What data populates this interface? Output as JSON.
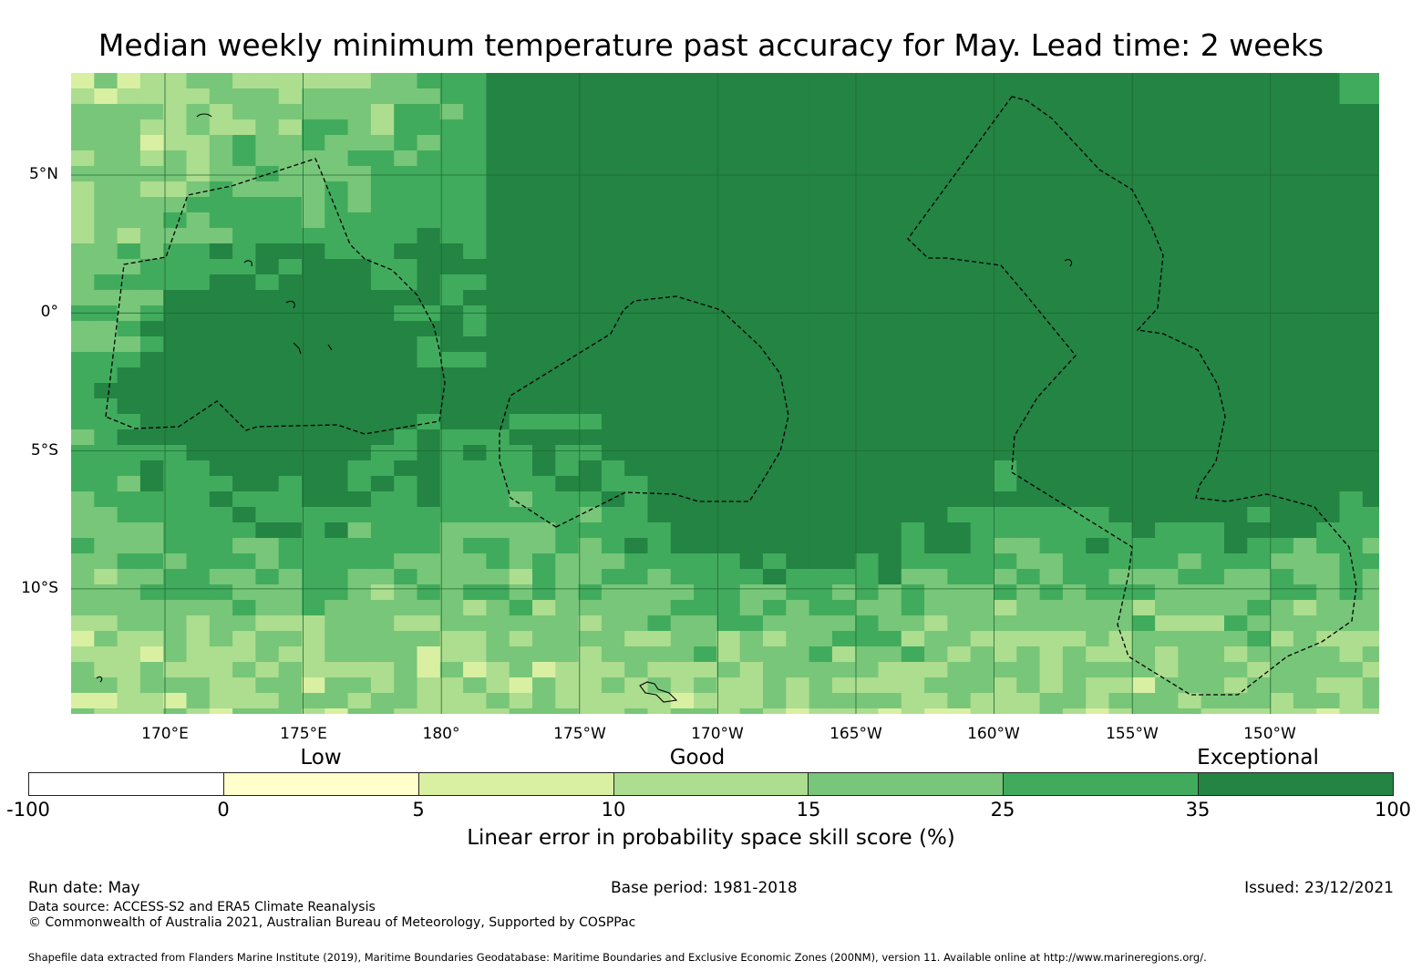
{
  "title": "Median weekly minimum temperature past accuracy for May. Lead time: 2 weeks",
  "map": {
    "lat_labels": [
      "5°N",
      "0°",
      "5°S",
      "10°S"
    ],
    "lon_labels": [
      "170°E",
      "175°E",
      "180°",
      "175°W",
      "170°W",
      "165°W",
      "160°W",
      "155°W",
      "150°W"
    ],
    "gridline_color": "#1f6a32"
  },
  "legend": {
    "categories": [
      "Low",
      "Good",
      "Exceptional"
    ],
    "ticks": [
      "-100",
      "0",
      "5",
      "10",
      "15",
      "25",
      "35",
      "100"
    ],
    "colors": [
      "#ffffff",
      "#ffffcc",
      "#d9f0a3",
      "#addd8e",
      "#78c679",
      "#41ab5d",
      "#238443"
    ],
    "title": "Linear error in probability space skill score (%)"
  },
  "footer": {
    "run_date": "Run date: May",
    "base_period": "Base period: 1981-2018",
    "issued": "Issued: 23/12/2021",
    "data_source": "Data source: ACCESS-S2 and ERA5 Climate Reanalysis",
    "copyright": "© Commonwealth of Australia 2021, Australian Bureau of Meteorology, Supported by COSPPac",
    "shapefile": "Shapefile data extracted from Flanders Marine Institute (2019), Maritime Boundaries Geodatabase: Maritime Boundaries and Exclusive Economic Zones (200NM), version 11. Available online at http://www.marineregions.org/."
  }
}
